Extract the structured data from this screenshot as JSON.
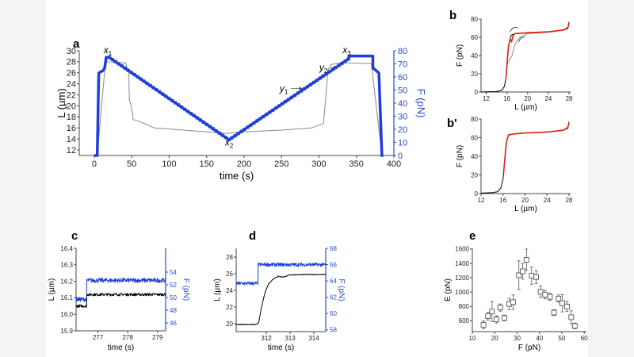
{
  "colors": {
    "L_trace": "#000000",
    "L_trace_a": "#8a8a8a",
    "F_trace": "#1f3fd8",
    "fit": "#e02010",
    "F_axis": "#2a49c8",
    "axis": "#444444",
    "marker": "#555555"
  },
  "chart_data": [
    {
      "panel": "a",
      "type": "line",
      "xlabel": "time (s)",
      "ylabel": "L (µm)",
      "y2label": "F (pN)",
      "xlim": [
        -20,
        400
      ],
      "ylim": [
        11,
        30
      ],
      "y2lim": [
        0,
        80
      ],
      "xticks": [
        0,
        50,
        100,
        150,
        200,
        250,
        300,
        350,
        400
      ],
      "yticks": [
        12,
        14,
        16,
        18,
        20,
        22,
        24,
        26,
        28,
        30
      ],
      "y2ticks": [
        0,
        10,
        20,
        30,
        40,
        50,
        60,
        70,
        80
      ],
      "series": [
        {
          "axis": "y",
          "quantity": "L",
          "points": [
            [
              0,
              11
            ],
            [
              4,
              11
            ],
            [
              15,
              28
            ],
            [
              42,
              27.8
            ],
            [
              44,
              26.8
            ],
            [
              46,
              26.5
            ],
            [
              47,
              21
            ],
            [
              50,
              19.7
            ],
            [
              52,
              17.5
            ],
            [
              60,
              17.2
            ],
            [
              72,
              16.5
            ],
            [
              80,
              16
            ],
            [
              120,
              15.6
            ],
            [
              178,
              15
            ],
            [
              190,
              15.2
            ],
            [
              250,
              15.6
            ],
            [
              290,
              16
            ],
            [
              306,
              16.8
            ],
            [
              308,
              19.7
            ],
            [
              312,
              26.5
            ],
            [
              316,
              27.5
            ],
            [
              330,
              27.8
            ],
            [
              370,
              27.7
            ],
            [
              384,
              11
            ]
          ]
        },
        {
          "axis": "y2",
          "quantity": "F",
          "points": [
            [
              0,
              0
            ],
            [
              4,
              0
            ],
            [
              6,
              63
            ],
            [
              12,
              65
            ],
            [
              14,
              67
            ],
            [
              16,
              75
            ],
            [
              20,
              75
            ],
            [
              180,
              12
            ],
            [
              340,
              74
            ],
            [
              340,
              76
            ],
            [
              372,
              76
            ],
            [
              372,
              67
            ],
            [
              380,
              63
            ],
            [
              384,
              0
            ],
            [
              386,
              0
            ]
          ]
        }
      ],
      "annotations": [
        {
          "var": "x",
          "sub": "1",
          "at": [
            18,
            29.6
          ]
        },
        {
          "var": "x",
          "sub": "2",
          "at": [
            180,
            12.8
          ]
        },
        {
          "var": "x",
          "sub": "3",
          "at": [
            337,
            29.6
          ]
        },
        {
          "var": "y",
          "sub": "1",
          "at": [
            253,
            22.6
          ],
          "arrow_to": [
            278,
            22.6
          ]
        },
        {
          "var": "y",
          "sub": "2",
          "at": [
            306,
            26.4
          ],
          "arrow_to": [
            324,
            26.4
          ]
        }
      ]
    },
    {
      "panel": "b",
      "type": "line",
      "xlabel": "L (µm)",
      "ylabel": "F (pN)",
      "xlim": [
        11,
        28.3
      ],
      "ylim": [
        0,
        80
      ],
      "xticks": [
        12,
        16,
        20,
        24,
        28
      ],
      "yticks": [
        0,
        20,
        40,
        60,
        80
      ],
      "series": [
        {
          "quantity": "data",
          "color_key": "L_trace",
          "points": [
            [
              11,
              0
            ],
            [
              14,
              0.5
            ],
            [
              15,
              2
            ],
            [
              15.5,
              6
            ],
            [
              15.8,
              15
            ],
            [
              16,
              30
            ],
            [
              16.3,
              50
            ],
            [
              16.8,
              62
            ],
            [
              17.5,
              64
            ],
            [
              20,
              65
            ],
            [
              24,
              66
            ],
            [
              27,
              68
            ],
            [
              27.8,
              70
            ],
            [
              28,
              77
            ]
          ]
        },
        {
          "quantity": "relaxation",
          "color_key": "L_trace_a",
          "points": [
            [
              16,
              30
            ],
            [
              17,
              40
            ],
            [
              17.5,
              52
            ],
            [
              18.5,
              60
            ],
            [
              20,
              64
            ],
            [
              24,
              65.5
            ],
            [
              27.8,
              69
            ]
          ]
        },
        {
          "quantity": "fit",
          "color_key": "fit",
          "points": [
            [
              15.8,
              15
            ],
            [
              16,
              30
            ],
            [
              16.3,
              50
            ],
            [
              16.6,
              58
            ],
            [
              16.9,
              55
            ],
            [
              17.2,
              62
            ],
            [
              17.5,
              64
            ],
            [
              20,
              65
            ],
            [
              24,
              66
            ],
            [
              27,
              68
            ],
            [
              27.8,
              71
            ],
            [
              28,
              76
            ]
          ]
        }
      ]
    },
    {
      "panel": "b'",
      "type": "line",
      "xlabel": "L (µm)",
      "ylabel": "F (pN)",
      "xlim": [
        12,
        28.3
      ],
      "ylim": [
        0,
        80
      ],
      "xticks": [
        12,
        16,
        20,
        24,
        28
      ],
      "yticks": [
        0,
        20,
        40,
        60,
        80
      ],
      "series": [
        {
          "quantity": "data",
          "color_key": "L_trace",
          "points": [
            [
              12,
              0.5
            ],
            [
              14,
              1
            ],
            [
              15,
              2
            ],
            [
              15.6,
              6
            ],
            [
              16,
              15
            ],
            [
              16.3,
              35
            ],
            [
              16.6,
              55
            ],
            [
              17,
              63
            ],
            [
              18,
              64
            ],
            [
              20,
              65
            ],
            [
              24,
              66
            ],
            [
              27,
              68
            ],
            [
              27.8,
              70
            ],
            [
              28,
              77
            ]
          ]
        },
        {
          "quantity": "fit",
          "color_key": "fit",
          "points": [
            [
              16.1,
              22
            ],
            [
              16.3,
              35
            ],
            [
              16.6,
              55
            ],
            [
              17,
              63
            ],
            [
              18,
              64
            ],
            [
              20,
              65
            ],
            [
              24,
              66
            ],
            [
              27,
              68
            ],
            [
              27.8,
              71
            ],
            [
              28,
              76
            ]
          ]
        }
      ]
    },
    {
      "panel": "c",
      "type": "line",
      "xlabel": "time (s)",
      "ylabel": "L (µm)",
      "y2label": "F (pN)",
      "xlim": [
        276.27,
        279.27
      ],
      "ylim": [
        15.9,
        16.4
      ],
      "y2lim": [
        44.75,
        57.75
      ],
      "xticks": [
        277,
        278,
        279
      ],
      "yticks": [
        15.9,
        16.0,
        16.1,
        16.2,
        16.3,
        16.4
      ],
      "y2ticks": [
        46,
        48,
        50,
        52,
        54
      ],
      "series": [
        {
          "axis": "y",
          "quantity": "L",
          "points": [
            [
              276.27,
              16.05
            ],
            [
              276.62,
              16.05
            ],
            [
              276.63,
              16.12
            ],
            [
              279.27,
              16.12
            ]
          ]
        },
        {
          "axis": "y2",
          "quantity": "F",
          "points": [
            [
              276.27,
              49.7
            ],
            [
              276.62,
              49.7
            ],
            [
              276.63,
              52.7
            ],
            [
              279.27,
              52.7
            ]
          ]
        }
      ]
    },
    {
      "panel": "d",
      "type": "line",
      "xlabel": "time (s)",
      "ylabel": "L (µm)",
      "y2label": "F (pN)",
      "xlim": [
        310.73,
        314.5
      ],
      "ylim": [
        19.05,
        29.05
      ],
      "y2lim": [
        57.8,
        68
      ],
      "xticks": [
        312,
        313,
        314
      ],
      "yticks": [
        20,
        22,
        24,
        26,
        28
      ],
      "y2ticks": [
        58,
        60,
        62,
        64,
        66,
        68
      ],
      "series": [
        {
          "axis": "y",
          "quantity": "L",
          "points": [
            [
              310.73,
              19.9
            ],
            [
              311.6,
              19.9
            ],
            [
              311.68,
              20.2
            ],
            [
              311.8,
              22
            ],
            [
              311.95,
              23.8
            ],
            [
              312.1,
              24.8
            ],
            [
              312.3,
              25.4
            ],
            [
              312.5,
              25.7
            ],
            [
              312.7,
              25.6
            ],
            [
              313,
              25.85
            ],
            [
              313.5,
              25.9
            ],
            [
              314.5,
              25.9
            ]
          ]
        },
        {
          "axis": "y2",
          "quantity": "F",
          "points": [
            [
              310.73,
              63.7
            ],
            [
              311.64,
              63.7
            ],
            [
              311.66,
              66
            ],
            [
              314.5,
              66
            ]
          ]
        }
      ]
    },
    {
      "panel": "e",
      "type": "scatter",
      "xlabel": "F (pN)",
      "ylabel": "E (pN)",
      "xlim": [
        10,
        61
      ],
      "ylim": [
        450,
        1610
      ],
      "xticks": [
        10,
        20,
        30,
        40,
        50,
        60
      ],
      "yticks": [
        600,
        800,
        1000,
        1200,
        1400,
        1600
      ],
      "x": [
        15,
        17,
        18.8,
        20.8,
        22.5,
        24.3,
        26.5,
        28.2,
        30.8,
        32.5,
        34.2,
        36.5,
        38.5,
        40.5,
        42.5,
        44.7,
        46.5,
        48.5,
        50.2,
        52.3,
        54.2,
        55.8
      ],
      "y": [
        545,
        665,
        730,
        620,
        785,
        640,
        835,
        860,
        1235,
        1290,
        1450,
        1230,
        1210,
        1005,
        965,
        935,
        715,
        910,
        845,
        800,
        650,
        530
      ],
      "err": [
        55,
        55,
        140,
        50,
        50,
        40,
        80,
        100,
        200,
        110,
        150,
        120,
        90,
        80,
        60,
        50,
        40,
        50,
        120,
        70,
        90,
        40
      ]
    }
  ]
}
